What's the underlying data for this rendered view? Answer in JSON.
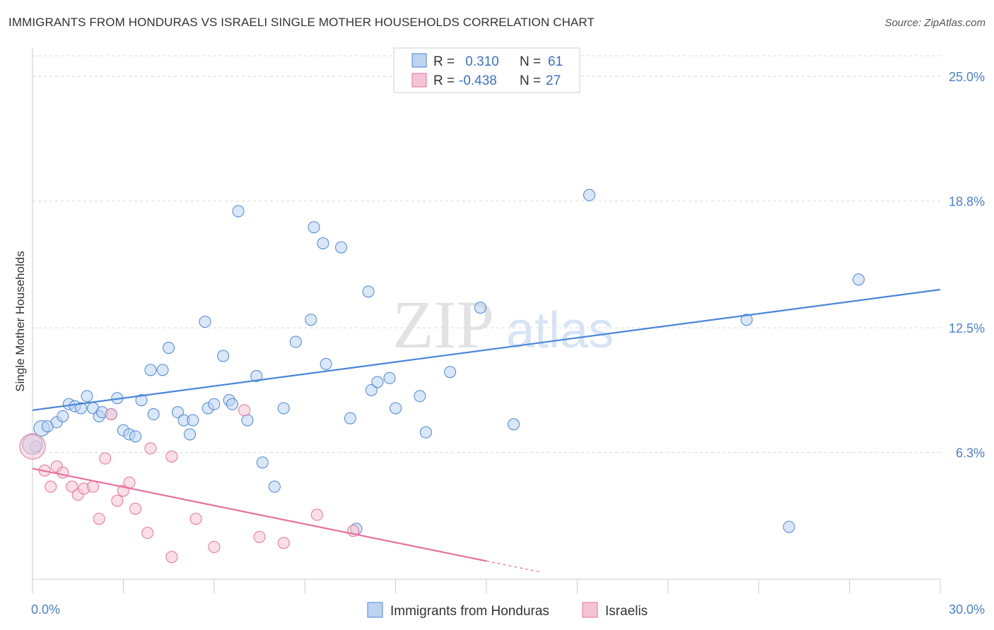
{
  "title": "IMMIGRANTS FROM HONDURAS VS ISRAELI SINGLE MOTHER HOUSEHOLDS CORRELATION CHART",
  "source": "Source: ZipAtlas.com",
  "watermark": {
    "zip": "ZIP",
    "atlas": "atlas"
  },
  "colors": {
    "blue": "#4a86d8",
    "blue_fill": "#bcd3f2",
    "pink": "#e8709a",
    "pink_fill": "#f5c4d4",
    "axis_text": "#4a7fd0",
    "grid": "#d8d8d8"
  },
  "legend": {
    "rows": [
      {
        "r_label": "R =",
        "r_value": " 0.310",
        "n_label": "N =",
        "n_value": "61"
      },
      {
        "r_label": "R =",
        "r_value": "-0.438",
        "n_label": "N =",
        "n_value": "27"
      }
    ]
  },
  "chart_data": {
    "type": "scatter",
    "title": "IMMIGRANTS FROM HONDURAS VS ISRAELI SINGLE MOTHER HOUSEHOLDS CORRELATION CHART",
    "xlabel": "",
    "ylabel": "Single Mother Households",
    "xlim": [
      0,
      30
    ],
    "ylim": [
      0,
      26.2
    ],
    "x_tick_labels": [
      "0.0%",
      "30.0%"
    ],
    "y_ticks": [
      6.3,
      12.5,
      18.8,
      25.0
    ],
    "y_tick_labels": [
      "6.3%",
      "12.5%",
      "18.8%",
      "25.0%"
    ],
    "legend_labels": [
      "Immigrants from Honduras",
      "Israelis"
    ],
    "series": [
      {
        "name": "Immigrants from Honduras",
        "color": "blue",
        "r": 0.31,
        "n": 61,
        "trend": [
          [
            0,
            8.4
          ],
          [
            30,
            14.4
          ]
        ],
        "points": [
          [
            0.3,
            7.5,
            11
          ],
          [
            0.5,
            7.6,
            8
          ],
          [
            0.8,
            7.8,
            8
          ],
          [
            1.0,
            8.1,
            8
          ],
          [
            1.2,
            8.7,
            8
          ],
          [
            1.4,
            8.6,
            8
          ],
          [
            1.6,
            8.5,
            8
          ],
          [
            1.8,
            9.1,
            8
          ],
          [
            2.0,
            8.5,
            8
          ],
          [
            2.2,
            8.1,
            8
          ],
          [
            2.3,
            8.3,
            8
          ],
          [
            2.6,
            8.2,
            8
          ],
          [
            2.8,
            9.0,
            8
          ],
          [
            3.0,
            7.4,
            8
          ],
          [
            3.2,
            7.2,
            8
          ],
          [
            3.4,
            7.1,
            8
          ],
          [
            3.6,
            8.9,
            8
          ],
          [
            3.9,
            10.4,
            8
          ],
          [
            4.0,
            8.2,
            8
          ],
          [
            4.3,
            10.4,
            8
          ],
          [
            4.5,
            11.5,
            8
          ],
          [
            4.8,
            8.3,
            8
          ],
          [
            5.0,
            7.9,
            8
          ],
          [
            5.2,
            7.2,
            8
          ],
          [
            5.3,
            7.9,
            8
          ],
          [
            5.7,
            12.8,
            8
          ],
          [
            5.8,
            8.5,
            8
          ],
          [
            6.0,
            8.7,
            8
          ],
          [
            6.3,
            11.1,
            8
          ],
          [
            6.5,
            8.9,
            8
          ],
          [
            6.6,
            8.7,
            8
          ],
          [
            6.8,
            18.3,
            8
          ],
          [
            7.1,
            7.9,
            8
          ],
          [
            7.4,
            10.1,
            8
          ],
          [
            7.6,
            5.8,
            8
          ],
          [
            8.0,
            4.6,
            8
          ],
          [
            8.3,
            8.5,
            8
          ],
          [
            8.7,
            11.8,
            8
          ],
          [
            9.2,
            12.9,
            8
          ],
          [
            9.3,
            17.5,
            8
          ],
          [
            9.6,
            16.7,
            8
          ],
          [
            9.7,
            10.7,
            8
          ],
          [
            10.2,
            16.5,
            8
          ],
          [
            10.5,
            8.0,
            8
          ],
          [
            10.7,
            2.5,
            8
          ],
          [
            11.1,
            14.3,
            8
          ],
          [
            11.2,
            9.4,
            8
          ],
          [
            11.4,
            9.8,
            8
          ],
          [
            11.8,
            10.0,
            8
          ],
          [
            12.0,
            8.5,
            8
          ],
          [
            12.8,
            9.1,
            8
          ],
          [
            13.0,
            7.3,
            8
          ],
          [
            13.8,
            10.3,
            8
          ],
          [
            14.8,
            13.5,
            8
          ],
          [
            15.9,
            7.7,
            8
          ],
          [
            18.4,
            19.1,
            8
          ],
          [
            23.6,
            12.9,
            8
          ],
          [
            25.0,
            2.6,
            8
          ],
          [
            27.3,
            14.9,
            8
          ],
          [
            0.1,
            6.6,
            8
          ],
          [
            0.0,
            6.7,
            14
          ]
        ]
      },
      {
        "name": "Israelis",
        "color": "pink",
        "r": -0.438,
        "n": 27,
        "trend": [
          [
            0,
            5.5
          ],
          [
            15,
            0.9
          ]
        ],
        "trend_dashed": [
          [
            15,
            0.9
          ],
          [
            16.8,
            0.35
          ]
        ],
        "points": [
          [
            0.0,
            6.6,
            18
          ],
          [
            0.4,
            5.4,
            8
          ],
          [
            0.6,
            4.6,
            8
          ],
          [
            0.8,
            5.6,
            8
          ],
          [
            1.0,
            5.3,
            8
          ],
          [
            1.3,
            4.6,
            8
          ],
          [
            1.5,
            4.2,
            8
          ],
          [
            1.7,
            4.5,
            8
          ],
          [
            2.0,
            4.6,
            8
          ],
          [
            2.2,
            3.0,
            8
          ],
          [
            2.4,
            6.0,
            8
          ],
          [
            2.6,
            8.2,
            8
          ],
          [
            2.8,
            3.9,
            8
          ],
          [
            3.0,
            4.4,
            8
          ],
          [
            3.2,
            4.8,
            8
          ],
          [
            3.4,
            3.5,
            8
          ],
          [
            3.8,
            2.3,
            8
          ],
          [
            3.9,
            6.5,
            8
          ],
          [
            4.6,
            1.1,
            8
          ],
          [
            4.6,
            6.1,
            8
          ],
          [
            5.4,
            3.0,
            8
          ],
          [
            6.0,
            1.6,
            8
          ],
          [
            7.0,
            8.4,
            8
          ],
          [
            7.5,
            2.1,
            8
          ],
          [
            8.3,
            1.8,
            8
          ],
          [
            9.4,
            3.2,
            8
          ],
          [
            10.6,
            2.4,
            8
          ]
        ]
      }
    ]
  }
}
